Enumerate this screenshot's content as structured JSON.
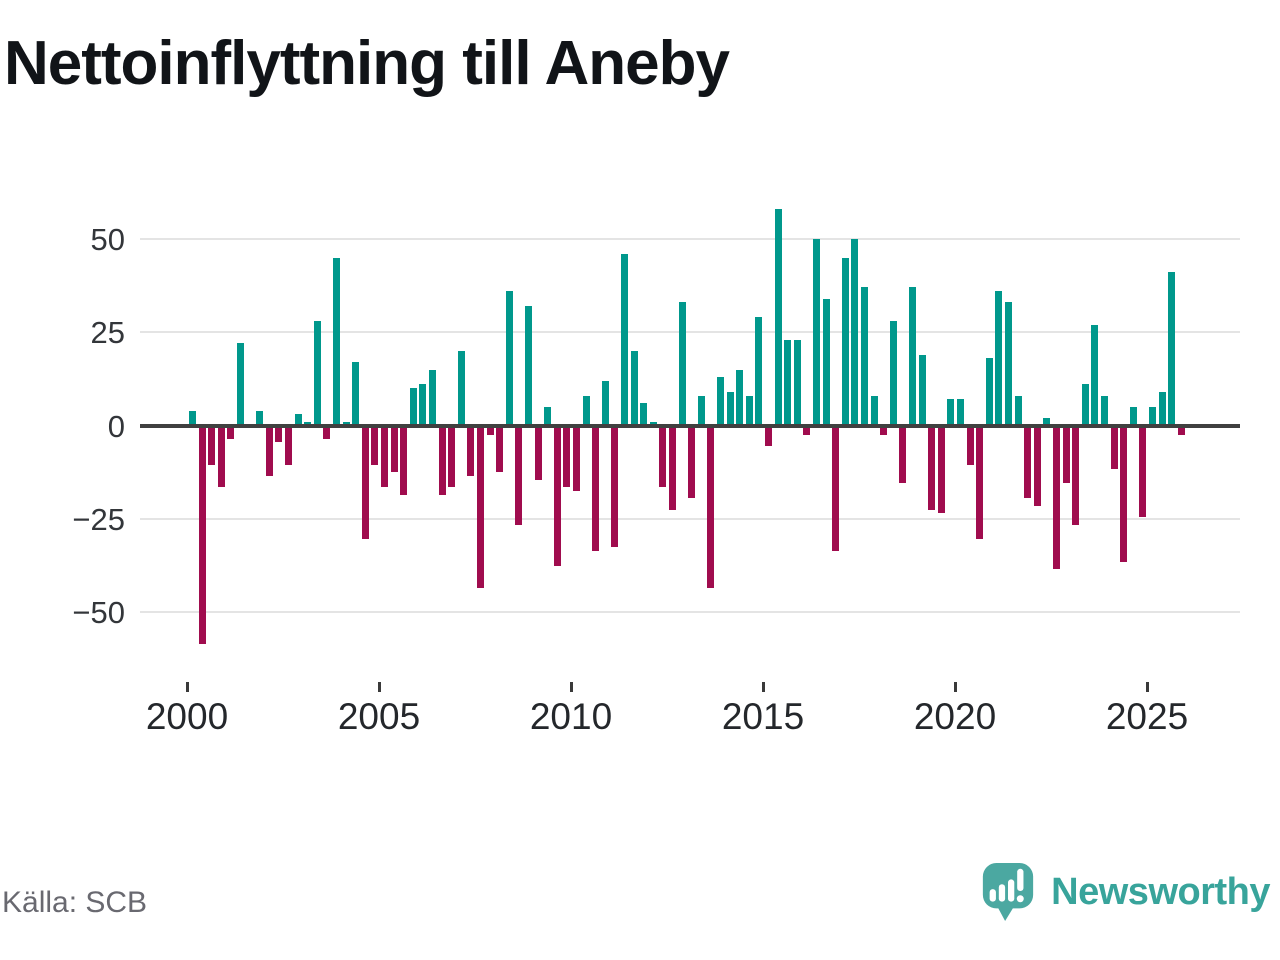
{
  "header": {
    "title": "Nettoinflyttning till Aneby"
  },
  "footer": {
    "source_label": "Källa: SCB",
    "brand_name": "Newsworthy"
  },
  "colors": {
    "positive": "#00988C",
    "negative": "#A00C4E",
    "zero_line": "#404040",
    "gridline": "#e4e4e4",
    "brand_teal": "#4BA8A1"
  },
  "chart_data": {
    "type": "bar",
    "title": "Nettoinflyttning till Aneby",
    "frequency": "quarterly",
    "x_start_year": 2000,
    "categories": [
      "2000Q1",
      "2000Q2",
      "2000Q3",
      "2000Q4",
      "2001Q1",
      "2001Q2",
      "2001Q3",
      "2001Q4",
      "2002Q1",
      "2002Q2",
      "2002Q3",
      "2002Q4",
      "2003Q1",
      "2003Q2",
      "2003Q3",
      "2003Q4",
      "2004Q1",
      "2004Q2",
      "2004Q3",
      "2004Q4",
      "2005Q1",
      "2005Q2",
      "2005Q3",
      "2005Q4",
      "2006Q1",
      "2006Q2",
      "2006Q3",
      "2006Q4",
      "2007Q1",
      "2007Q2",
      "2007Q3",
      "2007Q4",
      "2008Q1",
      "2008Q2",
      "2008Q3",
      "2008Q4",
      "2009Q1",
      "2009Q2",
      "2009Q3",
      "2009Q4",
      "2010Q1",
      "2010Q2",
      "2010Q3",
      "2010Q4",
      "2011Q1",
      "2011Q2",
      "2011Q3",
      "2011Q4",
      "2012Q1",
      "2012Q2",
      "2012Q3",
      "2012Q4",
      "2013Q1",
      "2013Q2",
      "2013Q3",
      "2013Q4",
      "2014Q1",
      "2014Q2",
      "2014Q3",
      "2014Q4",
      "2015Q1",
      "2015Q2",
      "2015Q3",
      "2015Q4",
      "2016Q1",
      "2016Q2",
      "2016Q3",
      "2016Q4",
      "2017Q1",
      "2017Q2",
      "2017Q3",
      "2017Q4",
      "2018Q1",
      "2018Q2",
      "2018Q3",
      "2018Q4",
      "2019Q1",
      "2019Q2",
      "2019Q3",
      "2019Q4",
      "2020Q1",
      "2020Q2",
      "2020Q3",
      "2020Q4",
      "2021Q1",
      "2021Q2",
      "2021Q3",
      "2021Q4",
      "2022Q1",
      "2022Q2",
      "2022Q3",
      "2022Q4",
      "2023Q1",
      "2023Q2",
      "2023Q3",
      "2023Q4",
      "2024Q1",
      "2024Q2",
      "2024Q3",
      "2024Q4",
      "2025Q1",
      "2025Q2",
      "2025Q3",
      "2025Q4"
    ],
    "values": [
      4,
      -58,
      -10,
      -16,
      -3,
      22,
      0,
      4,
      -13,
      -4,
      -10,
      3,
      1,
      28,
      -3,
      45,
      1,
      17,
      -30,
      -10,
      -16,
      -12,
      -18,
      10,
      11,
      15,
      -18,
      -16,
      20,
      -13,
      -43,
      -2,
      -12,
      36,
      -26,
      32,
      -14,
      5,
      -37,
      -16,
      -17,
      8,
      -33,
      12,
      -32,
      46,
      20,
      6,
      1,
      -16,
      -22,
      33,
      -19,
      8,
      -43,
      13,
      9,
      15,
      8,
      29,
      -5,
      58,
      23,
      23,
      -2,
      50,
      34,
      -33,
      45,
      50,
      37,
      8,
      -2,
      28,
      -15,
      37,
      19,
      -22,
      -23,
      7,
      7,
      -10,
      -30,
      18,
      36,
      33,
      8,
      -19,
      -21,
      2,
      -38,
      -15,
      -26,
      11,
      27,
      8,
      -11,
      -36,
      5,
      -24,
      5,
      9,
      41,
      -2
    ],
    "yticks": [
      50,
      25,
      0,
      -25,
      -50
    ],
    "ytick_labels": [
      "50",
      "25",
      "0",
      "−25",
      "−50"
    ],
    "xticks": [
      "2000",
      "2005",
      "2010",
      "2015",
      "2020",
      "2025"
    ],
    "xlabel": "",
    "ylabel": "",
    "ylim": [
      -65,
      66
    ],
    "grid": true,
    "legend": false
  }
}
